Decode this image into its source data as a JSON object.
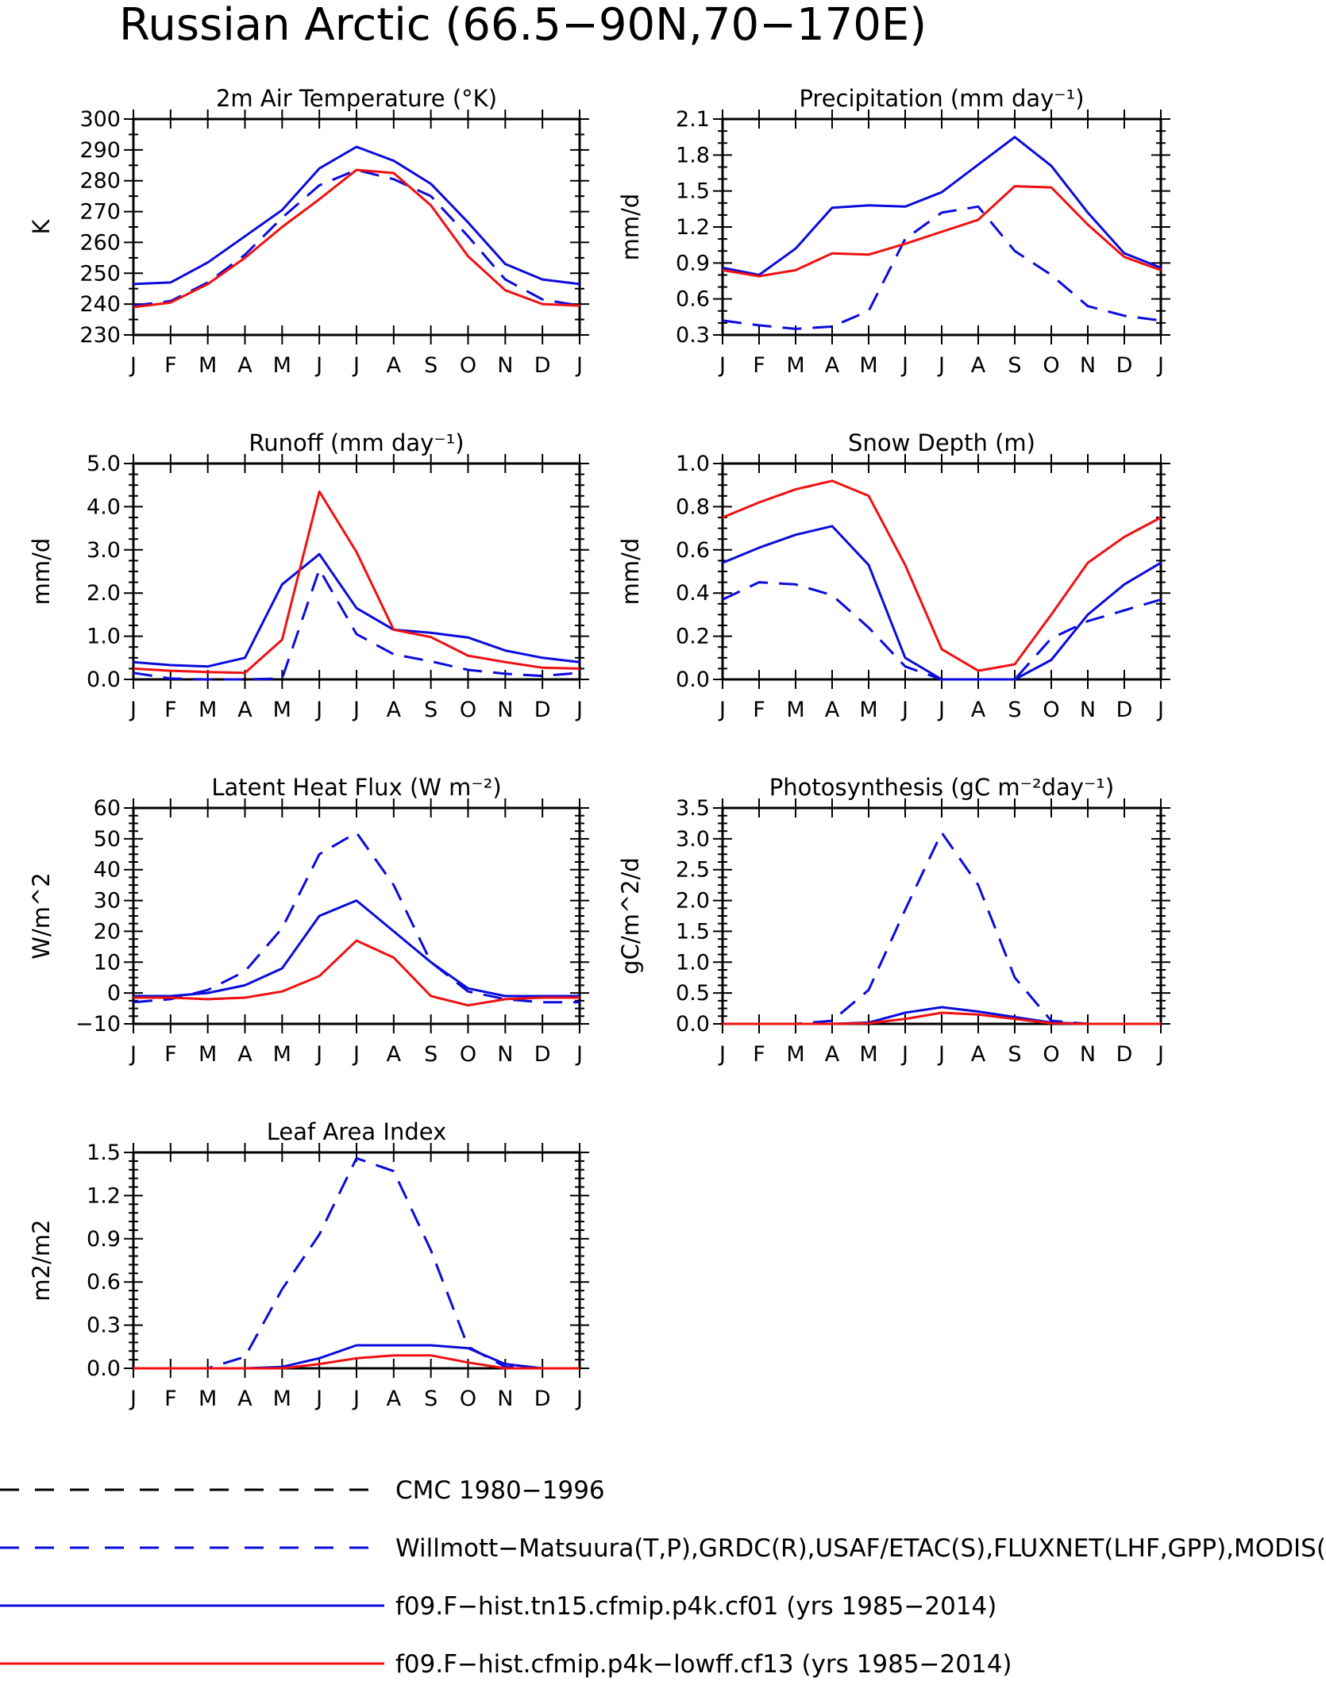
{
  "figure_title": "Russian Arctic (66.5−90N,70−170E)",
  "colors": {
    "blue": "#0b0bdc",
    "red": "#f01010",
    "black": "#000000"
  },
  "legend": [
    {
      "label": "CMC 1980−1996",
      "color": "#000000",
      "style": "dashed"
    },
    {
      "label": "Willmott−Matsuura(T,P),GRDC(R),USAF/ETAC(S),FLUXNET(LHF,GPP),MODIS(L",
      "color": "#0b0bdc",
      "style": "dashed"
    },
    {
      "label": "f09.F−hist.tn15.cfmip.p4k.cf01 (yrs 1985−2014)",
      "color": "#0b0bdc",
      "style": "solid"
    },
    {
      "label": "f09.F−hist.cfmip.p4k−lowff.cf13 (yrs 1985−2014)",
      "color": "#f01010",
      "style": "solid"
    }
  ],
  "chart_data": [
    {
      "type": "line",
      "title": "2m Air Temperature (°K)",
      "ylabel": "K",
      "ylim": [
        230,
        300
      ],
      "yticks": [
        "230",
        "240",
        "250",
        "260",
        "270",
        "280",
        "290",
        "300"
      ],
      "yminor": 2,
      "categories": [
        "J",
        "F",
        "M",
        "A",
        "M",
        "J",
        "J",
        "A",
        "S",
        "O",
        "N",
        "D",
        "J"
      ],
      "series": [
        {
          "color": "blue-dashed",
          "values": [
            239.5,
            241,
            247,
            256,
            268,
            278.5,
            283.5,
            280.5,
            275,
            262,
            248,
            241.5,
            239.5
          ]
        },
        {
          "color": "blue-solid",
          "values": [
            246.5,
            247,
            253.5,
            262,
            270.5,
            284,
            291,
            286.5,
            279,
            266.5,
            253,
            248,
            246.5
          ]
        },
        {
          "color": "red-solid",
          "values": [
            239,
            240.5,
            246.5,
            255,
            265,
            274,
            283.5,
            282.5,
            272,
            255.5,
            244.5,
            240,
            239.5
          ]
        }
      ]
    },
    {
      "type": "line",
      "title": "Precipitation (mm day⁻¹)",
      "ylabel": "mm/d",
      "ylim": [
        0.3,
        2.1
      ],
      "yticks": [
        "0.3",
        "0.6",
        "0.9",
        "1.2",
        "1.5",
        "1.8",
        "2.1"
      ],
      "yminor": 3,
      "categories": [
        "J",
        "F",
        "M",
        "A",
        "M",
        "J",
        "J",
        "A",
        "S",
        "O",
        "N",
        "D",
        "J"
      ],
      "series": [
        {
          "color": "blue-dashed",
          "values": [
            0.42,
            0.38,
            0.35,
            0.37,
            0.5,
            1.1,
            1.32,
            1.37,
            1.0,
            0.8,
            0.54,
            0.46,
            0.42
          ]
        },
        {
          "color": "blue-solid",
          "values": [
            0.86,
            0.8,
            1.02,
            1.36,
            1.38,
            1.37,
            1.49,
            1.72,
            1.95,
            1.71,
            1.32,
            0.98,
            0.86
          ]
        },
        {
          "color": "red-solid",
          "values": [
            0.84,
            0.79,
            0.84,
            0.98,
            0.97,
            1.06,
            1.16,
            1.26,
            1.54,
            1.53,
            1.22,
            0.95,
            0.84
          ]
        }
      ]
    },
    {
      "type": "line",
      "title": "Runoff (mm day⁻¹)",
      "ylabel": "mm/d",
      "ylim": [
        0,
        5
      ],
      "yticks": [
        "0.0",
        "1.0",
        "2.0",
        "3.0",
        "4.0",
        "5.0"
      ],
      "yminor": 4,
      "categories": [
        "J",
        "F",
        "M",
        "A",
        "M",
        "J",
        "J",
        "A",
        "S",
        "O",
        "N",
        "D",
        "J"
      ],
      "series": [
        {
          "color": "blue-dashed",
          "values": [
            0.15,
            0.02,
            0.0,
            0.0,
            0.02,
            2.55,
            1.05,
            0.58,
            0.42,
            0.22,
            0.13,
            0.08,
            0.15
          ]
        },
        {
          "color": "blue-solid",
          "values": [
            0.4,
            0.33,
            0.3,
            0.5,
            2.2,
            2.9,
            1.65,
            1.15,
            1.08,
            0.97,
            0.67,
            0.5,
            0.4
          ]
        },
        {
          "color": "red-solid",
          "values": [
            0.25,
            0.2,
            0.17,
            0.15,
            0.92,
            4.35,
            2.95,
            1.15,
            0.98,
            0.55,
            0.4,
            0.27,
            0.25
          ]
        }
      ]
    },
    {
      "type": "line",
      "title": "Snow Depth (m)",
      "ylabel": "mm/d",
      "ylim": [
        0,
        1.0
      ],
      "yticks": [
        "0.0",
        "0.2",
        "0.4",
        "0.6",
        "0.8",
        "1.0"
      ],
      "yminor": 4,
      "categories": [
        "J",
        "F",
        "M",
        "A",
        "M",
        "J",
        "J",
        "A",
        "S",
        "O",
        "N",
        "D",
        "J"
      ],
      "series": [
        {
          "color": "black-dashed",
          "values": [
            0,
            0,
            0,
            0,
            0,
            0,
            0,
            0,
            0,
            0,
            0,
            0,
            0
          ]
        },
        {
          "color": "blue-dashed",
          "values": [
            0.37,
            0.45,
            0.44,
            0.39,
            0.24,
            0.06,
            0.0,
            0.0,
            0.0,
            0.19,
            0.27,
            0.32,
            0.37
          ]
        },
        {
          "color": "blue-solid",
          "values": [
            0.54,
            0.61,
            0.67,
            0.71,
            0.53,
            0.1,
            0.0,
            0.0,
            0.0,
            0.09,
            0.3,
            0.44,
            0.54
          ]
        },
        {
          "color": "red-solid",
          "values": [
            0.75,
            0.82,
            0.88,
            0.92,
            0.85,
            0.53,
            0.14,
            0.04,
            0.07,
            0.3,
            0.54,
            0.66,
            0.75
          ]
        }
      ]
    },
    {
      "type": "line",
      "title": "Latent Heat Flux (W m⁻²)",
      "ylabel": "W/m^2",
      "ylim": [
        -10,
        60
      ],
      "yticks": [
        "−10",
        "0",
        "10",
        "20",
        "30",
        "40",
        "50",
        "60"
      ],
      "yminor": 4,
      "categories": [
        "J",
        "F",
        "M",
        "A",
        "M",
        "J",
        "J",
        "A",
        "S",
        "O",
        "N",
        "D",
        "J"
      ],
      "series": [
        {
          "color": "blue-dashed",
          "values": [
            -3,
            -2,
            1,
            7,
            21,
            45,
            52,
            35,
            10,
            0.5,
            -2,
            -3,
            -3
          ]
        },
        {
          "color": "blue-solid",
          "values": [
            -1,
            -1,
            0,
            2.5,
            8,
            25,
            30,
            20,
            10,
            1.5,
            -1,
            -1,
            -1
          ]
        },
        {
          "color": "red-solid",
          "values": [
            -1.5,
            -1.5,
            -2,
            -1.5,
            0.5,
            5.5,
            17,
            11.5,
            -1,
            -4,
            -2,
            -1.5,
            -1.5
          ]
        }
      ]
    },
    {
      "type": "line",
      "title": "Photosynthesis (gC m⁻²day⁻¹)",
      "ylabel": "gC/m^2/d",
      "ylim": [
        0,
        3.5
      ],
      "yticks": [
        "0.0",
        "0.5",
        "1.0",
        "1.5",
        "2.0",
        "2.5",
        "3.0",
        "3.5"
      ],
      "yminor": 4,
      "categories": [
        "J",
        "F",
        "M",
        "A",
        "M",
        "J",
        "J",
        "A",
        "S",
        "O",
        "N",
        "D",
        "J"
      ],
      "series": [
        {
          "color": "blue-dashed",
          "values": [
            0,
            0,
            0,
            0.05,
            0.55,
            1.85,
            3.1,
            2.25,
            0.75,
            0.05,
            0,
            0,
            0
          ]
        },
        {
          "color": "blue-solid",
          "values": [
            0,
            0,
            0,
            0,
            0.02,
            0.18,
            0.27,
            0.2,
            0.11,
            0.02,
            0,
            0,
            0
          ]
        },
        {
          "color": "red-solid",
          "values": [
            0,
            0,
            0,
            0,
            0.01,
            0.08,
            0.18,
            0.15,
            0.08,
            0.01,
            0,
            0,
            0
          ]
        }
      ]
    },
    {
      "type": "line",
      "title": "Leaf Area Index",
      "ylabel": "m2/m2",
      "ylim": [
        0,
        1.5
      ],
      "yticks": [
        "0.0",
        "0.3",
        "0.6",
        "0.9",
        "1.2",
        "1.5"
      ],
      "yminor": 5,
      "categories": [
        "J",
        "F",
        "M",
        "A",
        "M",
        "J",
        "J",
        "A",
        "S",
        "O",
        "N",
        "D",
        "J"
      ],
      "series": [
        {
          "color": "blue-dashed",
          "values": [
            0,
            0,
            0,
            0.08,
            0.55,
            0.93,
            1.46,
            1.37,
            0.82,
            0.15,
            0.01,
            0,
            0
          ]
        },
        {
          "color": "blue-solid",
          "values": [
            0,
            0,
            0,
            0,
            0.01,
            0.07,
            0.16,
            0.16,
            0.16,
            0.14,
            0.03,
            0,
            0
          ]
        },
        {
          "color": "red-solid",
          "values": [
            0,
            0,
            0,
            0,
            0,
            0.03,
            0.07,
            0.09,
            0.09,
            0.04,
            0,
            0,
            0
          ]
        }
      ]
    }
  ]
}
